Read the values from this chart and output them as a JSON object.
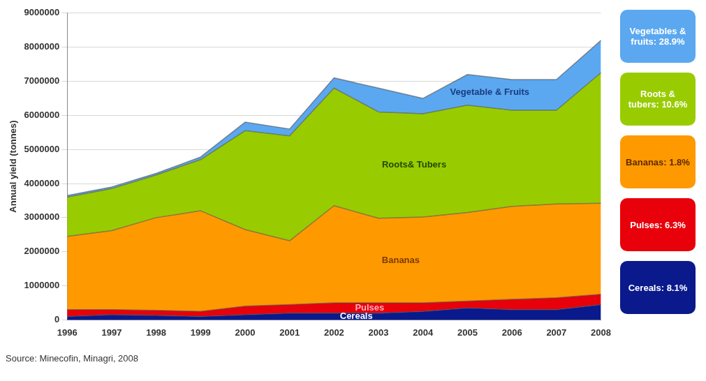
{
  "chart_data": {
    "type": "area",
    "stacked": true,
    "ylabel": "Annual yield (tonnes)",
    "categories": [
      "1996",
      "1997",
      "1998",
      "1999",
      "2000",
      "2001",
      "2002",
      "2003",
      "2004",
      "2005",
      "2006",
      "2007",
      "2008"
    ],
    "series": [
      {
        "name": "Cereals",
        "color": "#0a1a8c",
        "values": [
          100000,
          150000,
          130000,
          100000,
          150000,
          200000,
          200000,
          200000,
          250000,
          350000,
          300000,
          300000,
          450000
        ]
      },
      {
        "name": "Pulses",
        "color": "#e8000a",
        "values": [
          200000,
          150000,
          150000,
          150000,
          250000,
          250000,
          300000,
          300000,
          250000,
          200000,
          300000,
          350000,
          300000
        ]
      },
      {
        "name": "Bananas",
        "color": "#ff9900",
        "values": [
          2150000,
          2320000,
          2720000,
          2950000,
          2250000,
          1870000,
          2850000,
          2480000,
          2520000,
          2600000,
          2730000,
          2750000,
          2670000
        ]
      },
      {
        "name": "Roots& Tubers",
        "color": "#99cc00",
        "values": [
          1150000,
          1230000,
          1250000,
          1500000,
          2900000,
          3080000,
          3450000,
          3120000,
          3030000,
          3150000,
          2820000,
          2750000,
          3830000
        ]
      },
      {
        "name": "Vegetable & Fruits",
        "color": "#5ba8f0",
        "values": [
          50000,
          50000,
          50000,
          80000,
          250000,
          200000,
          300000,
          700000,
          450000,
          900000,
          900000,
          900000,
          950000
        ]
      }
    ],
    "ylim": [
      0,
      9000000
    ],
    "yticks": [
      0,
      1000000,
      2000000,
      3000000,
      4000000,
      5000000,
      6000000,
      7000000,
      8000000,
      9000000
    ],
    "grid": "y",
    "legend": false,
    "annotations": [
      "Vegetables & fruits: 28.9%",
      "Roots & tubers: 10.6%",
      "Bananas: 1.8%",
      "Pulses: 6.3%",
      "Cereals: 8.1%",
      "Source: Minecofin, Minagri, 2008"
    ]
  }
}
